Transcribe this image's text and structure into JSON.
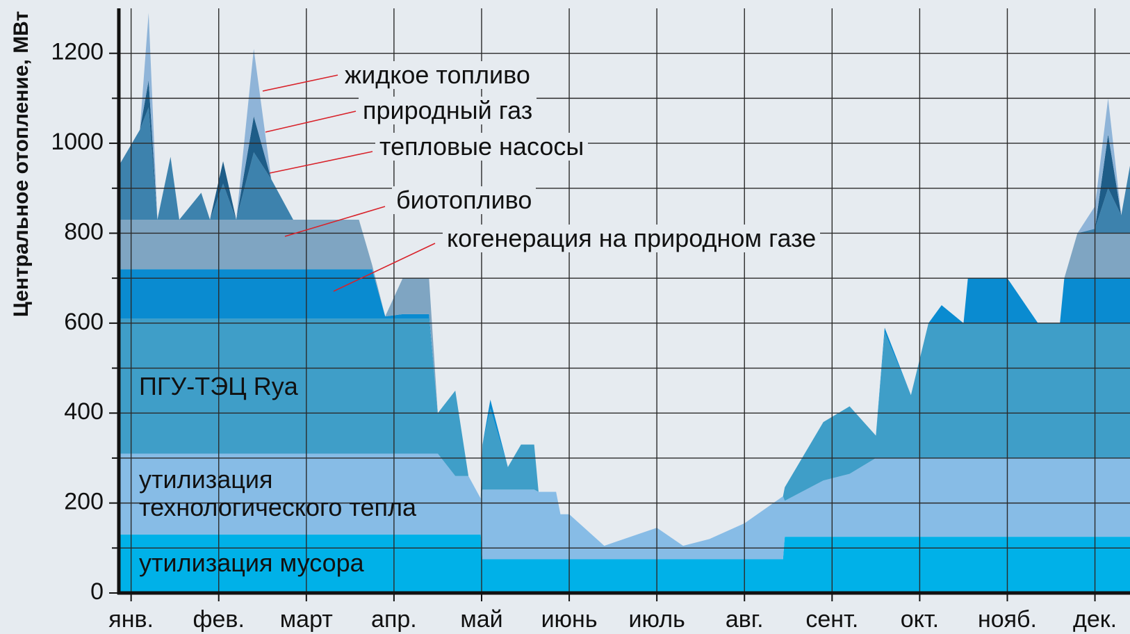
{
  "chart_data": {
    "type": "stacked_area",
    "y_label": "Центральное отопление, МВт",
    "xlim": [
      -0.14,
      11.4
    ],
    "xticks": [
      {
        "value": 0,
        "label": "янв."
      },
      {
        "value": 1,
        "label": "фев."
      },
      {
        "value": 2,
        "label": "март"
      },
      {
        "value": 3,
        "label": "апр."
      },
      {
        "value": 4,
        "label": "май"
      },
      {
        "value": 5,
        "label": "июнь"
      },
      {
        "value": 6,
        "label": "июль"
      },
      {
        "value": 7,
        "label": "авг."
      },
      {
        "value": 8,
        "label": "сент."
      },
      {
        "value": 9,
        "label": "окт."
      },
      {
        "value": 10,
        "label": "нояб."
      },
      {
        "value": 11,
        "label": "дек."
      }
    ],
    "ylim": [
      0,
      1300
    ],
    "yticks": [
      0,
      200,
      400,
      600,
      800,
      1000,
      1200
    ],
    "minor_yticks": [
      100,
      300,
      500,
      700,
      900,
      1100
    ],
    "grid": true,
    "x": [
      -0.14,
      0.1,
      0.2,
      0.3,
      0.45,
      0.55,
      0.8,
      0.9,
      1.05,
      1.2,
      1.4,
      1.6,
      1.85,
      2.6,
      2.75,
      2.9,
      3.1,
      3.4,
      3.5,
      3.7,
      3.85,
      3.99,
      4.01,
      4.1,
      4.3,
      4.45,
      4.6,
      4.65,
      4.85,
      4.9,
      5.0,
      5.4,
      6.0,
      6.3,
      6.6,
      7.0,
      7.44,
      7.46,
      7.9,
      8.2,
      8.5,
      8.6,
      8.9,
      9.1,
      9.25,
      9.5,
      9.55,
      10.0,
      10.35,
      10.6,
      10.65,
      10.8,
      11.0,
      11.15,
      11.3,
      11.4
    ],
    "series": [
      {
        "name": "утилизация мусора",
        "color": "#00b1e8",
        "values": [
          130,
          130,
          130,
          130,
          130,
          130,
          130,
          130,
          130,
          130,
          130,
          130,
          130,
          130,
          130,
          130,
          130,
          130,
          130,
          130,
          130,
          130,
          75,
          75,
          75,
          75,
          75,
          75,
          75,
          75,
          75,
          75,
          75,
          75,
          75,
          75,
          75,
          125,
          125,
          125,
          125,
          125,
          125,
          125,
          125,
          125,
          125,
          125,
          125,
          125,
          125,
          125,
          125,
          125,
          125,
          125
        ]
      },
      {
        "name": "утилизация технологического тепла",
        "color": "#87bce6",
        "values": [
          180,
          180,
          180,
          180,
          180,
          180,
          180,
          180,
          180,
          180,
          180,
          180,
          180,
          180,
          180,
          180,
          180,
          180,
          180,
          130,
          130,
          80,
          155,
          155,
          155,
          155,
          155,
          150,
          150,
          100,
          100,
          30,
          70,
          30,
          45,
          80,
          140,
          80,
          125,
          140,
          175,
          175,
          175,
          175,
          175,
          175,
          175,
          175,
          175,
          175,
          175,
          175,
          175,
          175,
          175,
          175
        ]
      },
      {
        "name": "ПГУ-ТЭЦ Rya",
        "color": "#3f9ec8",
        "values": [
          300,
          300,
          300,
          300,
          300,
          300,
          300,
          300,
          300,
          300,
          300,
          300,
          300,
          300,
          300,
          300,
          300,
          300,
          90,
          190,
          0,
          0,
          100,
          180,
          50,
          100,
          100,
          0,
          0,
          0,
          0,
          0,
          0,
          0,
          0,
          0,
          0,
          30,
          130,
          150,
          50,
          280,
          140,
          300,
          300,
          300,
          300,
          300,
          300,
          300,
          300,
          300,
          300,
          300,
          300,
          300
        ]
      },
      {
        "name": "когенерация на природном газе",
        "color": "#0a8bd0",
        "values": [
          110,
          110,
          110,
          110,
          110,
          110,
          110,
          110,
          110,
          110,
          110,
          110,
          110,
          110,
          110,
          5,
          10,
          10,
          0,
          0,
          0,
          0,
          0,
          20,
          0,
          0,
          0,
          0,
          0,
          0,
          0,
          0,
          0,
          0,
          0,
          0,
          0,
          0,
          0,
          0,
          0,
          10,
          0,
          0,
          40,
          0,
          100,
          100,
          0,
          0,
          100,
          100,
          100,
          100,
          100,
          100
        ]
      },
      {
        "name": "биотопливо",
        "color": "#7fa5c2",
        "values": [
          110,
          110,
          110,
          110,
          110,
          110,
          110,
          110,
          110,
          110,
          110,
          110,
          110,
          110,
          10,
          0,
          80,
          80,
          0,
          0,
          0,
          0,
          0,
          0,
          0,
          0,
          0,
          0,
          0,
          0,
          0,
          0,
          0,
          0,
          0,
          0,
          0,
          0,
          0,
          0,
          0,
          0,
          0,
          0,
          0,
          0,
          0,
          0,
          0,
          0,
          0,
          100,
          100,
          100,
          100,
          100
        ]
      },
      {
        "name": "тепловые насосы",
        "color": "#3d82ad",
        "values": [
          120,
          200,
          250,
          0,
          140,
          0,
          60,
          0,
          80,
          0,
          150,
          90,
          0,
          0,
          0,
          0,
          0,
          0,
          0,
          0,
          0,
          0,
          0,
          0,
          0,
          0,
          0,
          0,
          0,
          0,
          0,
          0,
          0,
          0,
          0,
          0,
          0,
          0,
          0,
          0,
          0,
          0,
          0,
          0,
          0,
          0,
          0,
          0,
          0,
          0,
          0,
          0,
          10,
          100,
          40,
          150
        ]
      },
      {
        "name": "природный газ",
        "color": "#1e5d88",
        "values": [
          0,
          0,
          60,
          0,
          0,
          0,
          0,
          0,
          50,
          0,
          80,
          0,
          0,
          0,
          0,
          0,
          0,
          0,
          0,
          0,
          0,
          0,
          0,
          0,
          0,
          0,
          0,
          0,
          0,
          0,
          0,
          0,
          0,
          0,
          0,
          0,
          0,
          0,
          0,
          0,
          0,
          0,
          0,
          0,
          0,
          0,
          0,
          0,
          0,
          0,
          0,
          0,
          0,
          120,
          0,
          0
        ]
      },
      {
        "name": "жидкое топливо",
        "color": "#8fb4d8",
        "values": [
          0,
          0,
          150,
          0,
          0,
          0,
          0,
          0,
          0,
          0,
          150,
          0,
          0,
          0,
          0,
          0,
          0,
          0,
          0,
          0,
          0,
          0,
          0,
          0,
          0,
          0,
          0,
          0,
          0,
          0,
          0,
          0,
          0,
          0,
          0,
          0,
          0,
          0,
          0,
          0,
          0,
          0,
          0,
          0,
          0,
          0,
          0,
          0,
          0,
          0,
          0,
          0,
          50,
          80,
          0,
          0
        ]
      }
    ]
  }
}
